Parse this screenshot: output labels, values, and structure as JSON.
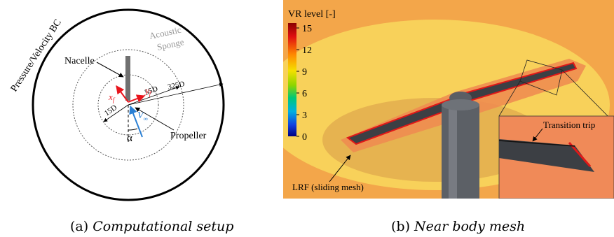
{
  "panel_a": {
    "boundary_label": "Pressure/Velocity BC",
    "sponge_label_1": "Acoustic",
    "sponge_label_2": "Sponge",
    "nacelle_label": "Nacelle",
    "propeller_label": "Propeller",
    "dim_inner": "15D",
    "dim_middle": "55D",
    "dim_outer": "325D",
    "axis_x": "x",
    "axis_y": "y",
    "axis_sub": "f",
    "velocity_label": "V",
    "velocity_sub": "∞",
    "angle_label": "α",
    "caption_prefix": "(a)",
    "caption_text": "Computational setup",
    "colors": {
      "axes": "#e8141c",
      "velocity": "#2a7fd4",
      "sponge_text": "#999999"
    }
  },
  "panel_b": {
    "legend_title": "VR level [-]",
    "legend_ticks": [
      "15",
      "12",
      "9",
      "6",
      "3",
      "0"
    ],
    "lrf_label": "LRF (sliding mesh)",
    "trip_label": "Transition trip",
    "caption_prefix": "(b)",
    "caption_text": "Near body mesh",
    "colors": {
      "outer": "#f4b74a",
      "inner": "#f08c55",
      "edge": "#e01818",
      "blade": "#3c3f44"
    }
  }
}
